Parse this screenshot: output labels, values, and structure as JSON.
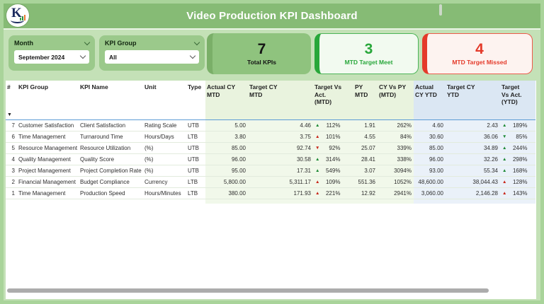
{
  "header": {
    "title": "Video Production KPI Dashboard"
  },
  "logo": {
    "letter": "K"
  },
  "slicers": {
    "month": {
      "label": "Month",
      "value": "September 2024"
    },
    "kpi_group": {
      "label": "KPI Group",
      "value": "All"
    }
  },
  "cards": [
    {
      "value": "7",
      "label": "Total KPIs"
    },
    {
      "value": "3",
      "label": "MTD Target Meet"
    },
    {
      "value": "4",
      "label": "MTD Target Missed"
    }
  ],
  "colors": {
    "header_green": "#86bb75",
    "content_green": "#c4e1b7",
    "slicer_green": "#9bc98b",
    "card_total_bg": "#8fc37e",
    "card_total_accent": "#7aaf68",
    "meet_green": "#28a73a",
    "missed_red": "#e43a2a",
    "tint_green_header": "#e9f3de",
    "tint_green_body": "#f1f8ea",
    "tint_blue_header": "#dbe7f3",
    "tint_blue_body": "#eaf1f9",
    "separator_blue": "#5b9bd5",
    "arrow_green": "#1e8a36",
    "arrow_red": "#c8261a"
  },
  "table": {
    "columns": [
      {
        "key": "num",
        "label": "#",
        "tint": "none",
        "align": "right"
      },
      {
        "key": "kpi_group",
        "label": "KPI Group",
        "tint": "none",
        "align": "left"
      },
      {
        "key": "kpi_name",
        "label": "KPI Name",
        "tint": "none",
        "align": "left"
      },
      {
        "key": "unit",
        "label": "Unit",
        "tint": "none",
        "align": "left"
      },
      {
        "key": "type",
        "label": "Type",
        "tint": "none",
        "align": "left"
      },
      {
        "key": "actual_cy_mtd",
        "label": "Actual CY\nMTD",
        "tint": "green",
        "align": "right"
      },
      {
        "key": "target_cy_mtd",
        "label": "Target CY\nMTD",
        "tint": "green",
        "align": "right"
      },
      {
        "key": "tva_mtd",
        "label": "Target Vs\nAct.\n(MTD)",
        "tint": "green",
        "align": "arrow"
      },
      {
        "key": "py_mtd",
        "label": "PY MTD",
        "tint": "green",
        "align": "right"
      },
      {
        "key": "cy_vs_py_mtd",
        "label": "CY Vs PY\n(MTD)",
        "tint": "green",
        "align": "right"
      },
      {
        "key": "actual_cy_ytd",
        "label": "Actual\nCY YTD",
        "tint": "blue",
        "align": "right"
      },
      {
        "key": "target_cy_ytd",
        "label": "Target CY\nYTD",
        "tint": "blue",
        "align": "right"
      },
      {
        "key": "tva_ytd",
        "label": "Target\nVs Act.\n(YTD)",
        "tint": "blue",
        "align": "arrow"
      }
    ],
    "rows": [
      {
        "num": "7",
        "kpi_group": "Customer Satisfaction",
        "kpi_name": "Client Satisfaction",
        "unit": "Rating Scale",
        "type": "UTB",
        "actual_cy_mtd": "5.00",
        "target_cy_mtd": "4.46",
        "tva_mtd": {
          "arrow": "up",
          "color": "green",
          "value": "112%"
        },
        "py_mtd": "1.91",
        "cy_vs_py_mtd": "262%",
        "actual_cy_ytd": "4.60",
        "target_cy_ytd": "2.43",
        "tva_ytd": {
          "arrow": "up",
          "color": "green",
          "value": "189%"
        }
      },
      {
        "num": "6",
        "kpi_group": "Time Management",
        "kpi_name": "Turnaround Time",
        "unit": "Hours/Days",
        "type": "LTB",
        "actual_cy_mtd": "3.80",
        "target_cy_mtd": "3.75",
        "tva_mtd": {
          "arrow": "up",
          "color": "red",
          "value": "101%"
        },
        "py_mtd": "4.55",
        "cy_vs_py_mtd": "84%",
        "actual_cy_ytd": "30.60",
        "target_cy_ytd": "36.06",
        "tva_ytd": {
          "arrow": "down",
          "color": "green",
          "value": "85%"
        }
      },
      {
        "num": "5",
        "kpi_group": "Resource Management",
        "kpi_name": "Resource Utilization",
        "unit": "(%)",
        "type": "UTB",
        "actual_cy_mtd": "85.00",
        "target_cy_mtd": "92.74",
        "tva_mtd": {
          "arrow": "down",
          "color": "red",
          "value": "92%"
        },
        "py_mtd": "25.07",
        "cy_vs_py_mtd": "339%",
        "actual_cy_ytd": "85.00",
        "target_cy_ytd": "34.89",
        "tva_ytd": {
          "arrow": "up",
          "color": "green",
          "value": "244%"
        }
      },
      {
        "num": "4",
        "kpi_group": "Quality Management",
        "kpi_name": "Quality Score",
        "unit": "(%)",
        "type": "UTB",
        "actual_cy_mtd": "96.00",
        "target_cy_mtd": "30.58",
        "tva_mtd": {
          "arrow": "up",
          "color": "green",
          "value": "314%"
        },
        "py_mtd": "28.41",
        "cy_vs_py_mtd": "338%",
        "actual_cy_ytd": "96.00",
        "target_cy_ytd": "32.26",
        "tva_ytd": {
          "arrow": "up",
          "color": "green",
          "value": "298%"
        }
      },
      {
        "num": "3",
        "kpi_group": "Project Management",
        "kpi_name": "Project Completion Rate",
        "unit": "(%)",
        "type": "UTB",
        "actual_cy_mtd": "95.00",
        "target_cy_mtd": "17.31",
        "tva_mtd": {
          "arrow": "up",
          "color": "green",
          "value": "549%"
        },
        "py_mtd": "3.07",
        "cy_vs_py_mtd": "3094%",
        "actual_cy_ytd": "93.00",
        "target_cy_ytd": "55.34",
        "tva_ytd": {
          "arrow": "up",
          "color": "green",
          "value": "168%"
        }
      },
      {
        "num": "2",
        "kpi_group": "Financial Management",
        "kpi_name": "Budget Compliance",
        "unit": "Currency",
        "type": "LTB",
        "actual_cy_mtd": "5,800.00",
        "target_cy_mtd": "5,311.17",
        "tva_mtd": {
          "arrow": "up",
          "color": "red",
          "value": "109%"
        },
        "py_mtd": "551.36",
        "cy_vs_py_mtd": "1052%",
        "actual_cy_ytd": "48,600.00",
        "target_cy_ytd": "38,044.43",
        "tva_ytd": {
          "arrow": "up",
          "color": "red",
          "value": "128%"
        }
      },
      {
        "num": "1",
        "kpi_group": "Time Management",
        "kpi_name": "Production Speed",
        "unit": "Hours/Minutes",
        "type": "LTB",
        "actual_cy_mtd": "380.00",
        "target_cy_mtd": "171.93",
        "tva_mtd": {
          "arrow": "up",
          "color": "red",
          "value": "221%"
        },
        "py_mtd": "12.92",
        "cy_vs_py_mtd": "2941%",
        "actual_cy_ytd": "3,060.00",
        "target_cy_ytd": "2,146.28",
        "tva_ytd": {
          "arrow": "up",
          "color": "red",
          "value": "143%"
        }
      }
    ]
  }
}
